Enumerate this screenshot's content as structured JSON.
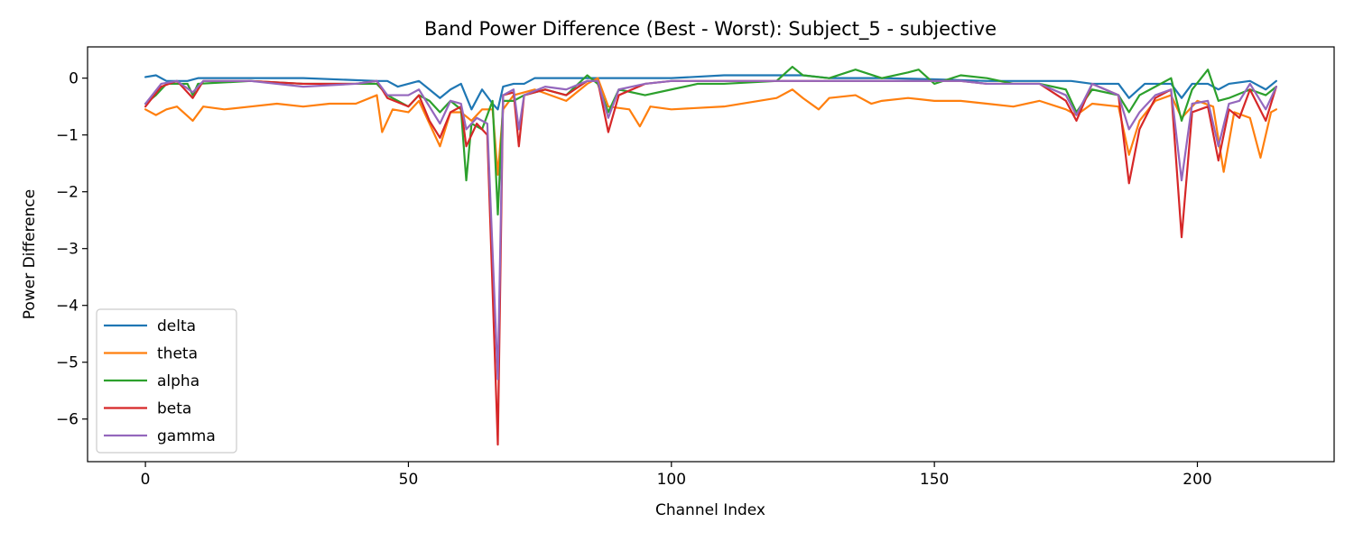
{
  "chart_data": {
    "type": "line",
    "title": "Band Power Difference (Best - Worst): Subject_5 - subjective",
    "xlabel": "Channel Index",
    "ylabel": "Power Difference",
    "xlim": [
      -11,
      226
    ],
    "ylim": [
      -6.75,
      0.55
    ],
    "xticks": [
      0,
      50,
      100,
      150,
      200
    ],
    "yticks": [
      0,
      -1,
      -2,
      -3,
      -4,
      -5,
      -6
    ],
    "grid": false,
    "legend": "lower-left",
    "series": [
      {
        "name": "delta",
        "color": "#1f77b4",
        "keypoints": [
          [
            0,
            0.02
          ],
          [
            2,
            0.05
          ],
          [
            4,
            -0.05
          ],
          [
            8,
            -0.05
          ],
          [
            10,
            0
          ],
          [
            20,
            0
          ],
          [
            30,
            0
          ],
          [
            44,
            -0.05
          ],
          [
            46,
            -0.05
          ],
          [
            48,
            -0.15
          ],
          [
            50,
            -0.1
          ],
          [
            52,
            -0.05
          ],
          [
            54,
            -0.2
          ],
          [
            56,
            -0.35
          ],
          [
            58,
            -0.2
          ],
          [
            60,
            -0.1
          ],
          [
            62,
            -0.55
          ],
          [
            64,
            -0.2
          ],
          [
            66,
            -0.45
          ],
          [
            67,
            -0.55
          ],
          [
            68,
            -0.15
          ],
          [
            70,
            -0.1
          ],
          [
            72,
            -0.1
          ],
          [
            74,
            0
          ],
          [
            80,
            0
          ],
          [
            85,
            0
          ],
          [
            90,
            0
          ],
          [
            95,
            0
          ],
          [
            100,
            0
          ],
          [
            110,
            0.05
          ],
          [
            115,
            0.05
          ],
          [
            120,
            0.05
          ],
          [
            125,
            0.05
          ],
          [
            130,
            0
          ],
          [
            140,
            0
          ],
          [
            150,
            -0.02
          ],
          [
            160,
            -0.05
          ],
          [
            170,
            -0.05
          ],
          [
            176,
            -0.05
          ],
          [
            180,
            -0.1
          ],
          [
            185,
            -0.1
          ],
          [
            187,
            -0.35
          ],
          [
            190,
            -0.1
          ],
          [
            195,
            -0.1
          ],
          [
            197,
            -0.35
          ],
          [
            199,
            -0.1
          ],
          [
            202,
            -0.1
          ],
          [
            204,
            -0.2
          ],
          [
            206,
            -0.1
          ],
          [
            210,
            -0.05
          ],
          [
            213,
            -0.2
          ],
          [
            215,
            -0.05
          ]
        ]
      },
      {
        "name": "theta",
        "color": "#ff7f0e",
        "keypoints": [
          [
            0,
            -0.55
          ],
          [
            2,
            -0.65
          ],
          [
            4,
            -0.55
          ],
          [
            6,
            -0.5
          ],
          [
            9,
            -0.75
          ],
          [
            11,
            -0.5
          ],
          [
            15,
            -0.55
          ],
          [
            20,
            -0.5
          ],
          [
            25,
            -0.45
          ],
          [
            30,
            -0.5
          ],
          [
            35,
            -0.45
          ],
          [
            40,
            -0.45
          ],
          [
            44,
            -0.3
          ],
          [
            45,
            -0.95
          ],
          [
            47,
            -0.55
          ],
          [
            50,
            -0.6
          ],
          [
            52,
            -0.4
          ],
          [
            56,
            -1.2
          ],
          [
            58,
            -0.6
          ],
          [
            60,
            -0.6
          ],
          [
            62,
            -0.75
          ],
          [
            64,
            -0.55
          ],
          [
            66,
            -0.55
          ],
          [
            67,
            -1.7
          ],
          [
            68,
            -0.55
          ],
          [
            70,
            -0.3
          ],
          [
            74,
            -0.2
          ],
          [
            80,
            -0.4
          ],
          [
            84,
            -0.1
          ],
          [
            86,
            0
          ],
          [
            88,
            -0.5
          ],
          [
            92,
            -0.55
          ],
          [
            94,
            -0.85
          ],
          [
            96,
            -0.5
          ],
          [
            100,
            -0.55
          ],
          [
            110,
            -0.5
          ],
          [
            120,
            -0.35
          ],
          [
            123,
            -0.2
          ],
          [
            125,
            -0.35
          ],
          [
            128,
            -0.55
          ],
          [
            130,
            -0.35
          ],
          [
            135,
            -0.3
          ],
          [
            138,
            -0.45
          ],
          [
            140,
            -0.4
          ],
          [
            145,
            -0.35
          ],
          [
            150,
            -0.4
          ],
          [
            155,
            -0.4
          ],
          [
            160,
            -0.45
          ],
          [
            165,
            -0.5
          ],
          [
            170,
            -0.4
          ],
          [
            175,
            -0.55
          ],
          [
            177,
            -0.65
          ],
          [
            180,
            -0.45
          ],
          [
            185,
            -0.5
          ],
          [
            187,
            -1.35
          ],
          [
            189,
            -0.75
          ],
          [
            192,
            -0.4
          ],
          [
            195,
            -0.3
          ],
          [
            197,
            -0.7
          ],
          [
            200,
            -0.4
          ],
          [
            203,
            -0.5
          ],
          [
            205,
            -1.65
          ],
          [
            207,
            -0.6
          ],
          [
            210,
            -0.7
          ],
          [
            212,
            -1.4
          ],
          [
            214,
            -0.6
          ],
          [
            215,
            -0.55
          ]
        ]
      },
      {
        "name": "alpha",
        "color": "#2ca02c",
        "keypoints": [
          [
            0,
            -0.45
          ],
          [
            2,
            -0.3
          ],
          [
            4,
            -0.1
          ],
          [
            8,
            -0.1
          ],
          [
            9,
            -0.3
          ],
          [
            10,
            -0.1
          ],
          [
            20,
            -0.05
          ],
          [
            30,
            -0.1
          ],
          [
            40,
            -0.1
          ],
          [
            44,
            -0.1
          ],
          [
            46,
            -0.3
          ],
          [
            50,
            -0.5
          ],
          [
            52,
            -0.3
          ],
          [
            54,
            -0.4
          ],
          [
            56,
            -0.6
          ],
          [
            58,
            -0.4
          ],
          [
            60,
            -0.55
          ],
          [
            61,
            -1.8
          ],
          [
            62,
            -0.8
          ],
          [
            64,
            -0.9
          ],
          [
            66,
            -0.4
          ],
          [
            67,
            -2.4
          ],
          [
            68,
            -0.4
          ],
          [
            70,
            -0.4
          ],
          [
            72,
            -0.3
          ],
          [
            76,
            -0.2
          ],
          [
            80,
            -0.3
          ],
          [
            84,
            0.05
          ],
          [
            86,
            -0.1
          ],
          [
            88,
            -0.6
          ],
          [
            90,
            -0.2
          ],
          [
            95,
            -0.3
          ],
          [
            100,
            -0.2
          ],
          [
            105,
            -0.1
          ],
          [
            110,
            -0.1
          ],
          [
            120,
            -0.05
          ],
          [
            123,
            0.2
          ],
          [
            125,
            0.05
          ],
          [
            130,
            0
          ],
          [
            135,
            0.15
          ],
          [
            140,
            0
          ],
          [
            145,
            0.1
          ],
          [
            147,
            0.15
          ],
          [
            150,
            -0.1
          ],
          [
            155,
            0.05
          ],
          [
            160,
            0
          ],
          [
            165,
            -0.1
          ],
          [
            170,
            -0.1
          ],
          [
            175,
            -0.2
          ],
          [
            177,
            -0.6
          ],
          [
            180,
            -0.2
          ],
          [
            185,
            -0.3
          ],
          [
            187,
            -0.6
          ],
          [
            189,
            -0.3
          ],
          [
            192,
            -0.15
          ],
          [
            195,
            0
          ],
          [
            197,
            -0.75
          ],
          [
            199,
            -0.2
          ],
          [
            202,
            0.15
          ],
          [
            204,
            -0.4
          ],
          [
            206,
            -0.35
          ],
          [
            210,
            -0.2
          ],
          [
            213,
            -0.3
          ],
          [
            215,
            -0.15
          ]
        ]
      },
      {
        "name": "beta",
        "color": "#d62728",
        "keypoints": [
          [
            0,
            -0.5
          ],
          [
            3,
            -0.15
          ],
          [
            6,
            -0.05
          ],
          [
            9,
            -0.35
          ],
          [
            11,
            -0.05
          ],
          [
            20,
            -0.05
          ],
          [
            30,
            -0.1
          ],
          [
            40,
            -0.1
          ],
          [
            44,
            -0.05
          ],
          [
            46,
            -0.35
          ],
          [
            50,
            -0.5
          ],
          [
            52,
            -0.3
          ],
          [
            54,
            -0.75
          ],
          [
            56,
            -1.05
          ],
          [
            58,
            -0.6
          ],
          [
            60,
            -0.5
          ],
          [
            61,
            -1.2
          ],
          [
            63,
            -0.8
          ],
          [
            65,
            -1.0
          ],
          [
            67,
            -6.45
          ],
          [
            68,
            -0.3
          ],
          [
            70,
            -0.25
          ],
          [
            71,
            -1.2
          ],
          [
            72,
            -0.3
          ],
          [
            76,
            -0.2
          ],
          [
            80,
            -0.3
          ],
          [
            84,
            -0.05
          ],
          [
            86,
            -0.05
          ],
          [
            88,
            -0.95
          ],
          [
            90,
            -0.3
          ],
          [
            95,
            -0.1
          ],
          [
            100,
            -0.05
          ],
          [
            110,
            -0.05
          ],
          [
            120,
            -0.05
          ],
          [
            130,
            -0.05
          ],
          [
            140,
            -0.05
          ],
          [
            150,
            -0.05
          ],
          [
            155,
            -0.05
          ],
          [
            160,
            -0.1
          ],
          [
            165,
            -0.1
          ],
          [
            170,
            -0.1
          ],
          [
            175,
            -0.4
          ],
          [
            177,
            -0.75
          ],
          [
            180,
            -0.1
          ],
          [
            185,
            -0.3
          ],
          [
            187,
            -1.85
          ],
          [
            189,
            -0.9
          ],
          [
            192,
            -0.35
          ],
          [
            195,
            -0.2
          ],
          [
            197,
            -2.8
          ],
          [
            199,
            -0.6
          ],
          [
            202,
            -0.5
          ],
          [
            204,
            -1.45
          ],
          [
            206,
            -0.55
          ],
          [
            208,
            -0.7
          ],
          [
            210,
            -0.2
          ],
          [
            213,
            -0.75
          ],
          [
            215,
            -0.15
          ]
        ]
      },
      {
        "name": "gamma",
        "color": "#9467bd",
        "keypoints": [
          [
            0,
            -0.45
          ],
          [
            3,
            -0.1
          ],
          [
            6,
            -0.05
          ],
          [
            9,
            -0.25
          ],
          [
            11,
            -0.05
          ],
          [
            20,
            -0.05
          ],
          [
            30,
            -0.15
          ],
          [
            40,
            -0.1
          ],
          [
            44,
            -0.05
          ],
          [
            46,
            -0.3
          ],
          [
            50,
            -0.3
          ],
          [
            52,
            -0.2
          ],
          [
            54,
            -0.5
          ],
          [
            56,
            -0.8
          ],
          [
            58,
            -0.4
          ],
          [
            60,
            -0.45
          ],
          [
            61,
            -0.9
          ],
          [
            63,
            -0.7
          ],
          [
            65,
            -0.8
          ],
          [
            67,
            -5.3
          ],
          [
            68,
            -0.3
          ],
          [
            70,
            -0.2
          ],
          [
            71,
            -0.9
          ],
          [
            72,
            -0.3
          ],
          [
            76,
            -0.15
          ],
          [
            80,
            -0.2
          ],
          [
            84,
            -0.05
          ],
          [
            86,
            -0.05
          ],
          [
            88,
            -0.7
          ],
          [
            90,
            -0.2
          ],
          [
            95,
            -0.1
          ],
          [
            100,
            -0.05
          ],
          [
            110,
            -0.05
          ],
          [
            120,
            -0.05
          ],
          [
            130,
            -0.05
          ],
          [
            140,
            -0.05
          ],
          [
            150,
            -0.05
          ],
          [
            155,
            -0.05
          ],
          [
            160,
            -0.1
          ],
          [
            165,
            -0.1
          ],
          [
            170,
            -0.1
          ],
          [
            175,
            -0.3
          ],
          [
            177,
            -0.65
          ],
          [
            180,
            -0.1
          ],
          [
            185,
            -0.3
          ],
          [
            187,
            -0.9
          ],
          [
            189,
            -0.6
          ],
          [
            192,
            -0.3
          ],
          [
            195,
            -0.2
          ],
          [
            197,
            -1.8
          ],
          [
            199,
            -0.45
          ],
          [
            202,
            -0.4
          ],
          [
            204,
            -1.2
          ],
          [
            206,
            -0.45
          ],
          [
            208,
            -0.4
          ],
          [
            210,
            -0.1
          ],
          [
            213,
            -0.55
          ],
          [
            215,
            -0.15
          ]
        ]
      }
    ]
  }
}
